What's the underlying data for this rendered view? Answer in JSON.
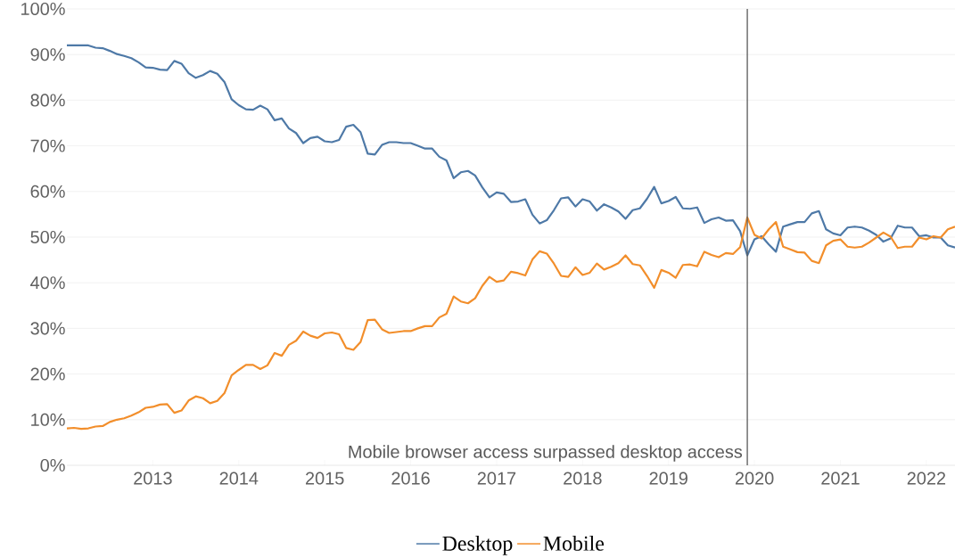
{
  "chart_data": {
    "type": "line",
    "x": [
      "2012-01",
      "2012-02",
      "2012-03",
      "2012-04",
      "2012-05",
      "2012-06",
      "2012-07",
      "2012-08",
      "2012-09",
      "2012-10",
      "2012-11",
      "2012-12",
      "2013-01",
      "2013-02",
      "2013-03",
      "2013-04",
      "2013-05",
      "2013-06",
      "2013-07",
      "2013-08",
      "2013-09",
      "2013-10",
      "2013-11",
      "2013-12",
      "2014-01",
      "2014-02",
      "2014-03",
      "2014-04",
      "2014-05",
      "2014-06",
      "2014-07",
      "2014-08",
      "2014-09",
      "2014-10",
      "2014-11",
      "2014-12",
      "2015-01",
      "2015-02",
      "2015-03",
      "2015-04",
      "2015-05",
      "2015-06",
      "2015-07",
      "2015-08",
      "2015-09",
      "2015-10",
      "2015-11",
      "2015-12",
      "2016-01",
      "2016-02",
      "2016-03",
      "2016-04",
      "2016-05",
      "2016-06",
      "2016-07",
      "2016-08",
      "2016-09",
      "2016-10",
      "2016-11",
      "2016-12",
      "2017-01",
      "2017-02",
      "2017-03",
      "2017-04",
      "2017-05",
      "2017-06",
      "2017-07",
      "2017-08",
      "2017-09",
      "2017-10",
      "2017-11",
      "2017-12",
      "2018-01",
      "2018-02",
      "2018-03",
      "2018-04",
      "2018-05",
      "2018-06",
      "2018-07",
      "2018-08",
      "2018-09",
      "2018-10",
      "2018-11",
      "2018-12",
      "2019-01",
      "2019-02",
      "2019-03",
      "2019-04",
      "2019-05",
      "2019-06",
      "2019-07",
      "2019-08",
      "2019-09",
      "2019-10",
      "2019-11",
      "2019-12",
      "2020-01",
      "2020-02",
      "2020-03",
      "2020-04",
      "2020-05",
      "2020-06",
      "2020-07",
      "2020-08",
      "2020-09",
      "2020-10",
      "2020-11",
      "2020-12",
      "2021-01",
      "2021-02",
      "2021-03",
      "2021-04",
      "2021-05",
      "2021-06",
      "2021-07",
      "2021-08",
      "2021-09",
      "2021-10",
      "2021-11",
      "2021-12",
      "2022-01",
      "2022-02",
      "2022-03",
      "2022-04",
      "2022-05"
    ],
    "series": [
      {
        "name": "Desktop",
        "color": "#4e79a7",
        "values": [
          92.0,
          92.0,
          92.0,
          92.0,
          91.5,
          91.4,
          90.8,
          90.1,
          89.7,
          89.2,
          88.3,
          87.2,
          87.1,
          86.7,
          86.6,
          88.6,
          88.0,
          85.9,
          84.9,
          85.5,
          86.4,
          85.8,
          84.0,
          80.2,
          78.9,
          78.0,
          77.9,
          78.8,
          78.0,
          75.6,
          76.0,
          73.8,
          72.8,
          70.6,
          71.7,
          72.0,
          71.0,
          70.8,
          71.3,
          74.2,
          74.6,
          73.0,
          68.3,
          68.1,
          70.2,
          70.8,
          70.8,
          70.6,
          70.6,
          70.0,
          69.4,
          69.4,
          67.6,
          66.8,
          62.9,
          64.2,
          64.5,
          63.5,
          60.9,
          58.7,
          59.8,
          59.5,
          57.7,
          57.8,
          58.3,
          54.9,
          53.0,
          53.7,
          55.9,
          58.5,
          58.7,
          56.7,
          58.3,
          57.8,
          55.8,
          57.2,
          56.5,
          55.6,
          54.0,
          55.9,
          56.3,
          58.4,
          61.0,
          57.4,
          57.9,
          58.8,
          56.3,
          56.2,
          56.5,
          53.1,
          53.9,
          54.3,
          53.6,
          53.7,
          51.3,
          46.0,
          49.5,
          50.2,
          48.4,
          46.8,
          52.3,
          52.8,
          53.3,
          53.3,
          55.2,
          55.7,
          51.7,
          50.8,
          50.4,
          52.1,
          52.3,
          52.1,
          51.4,
          50.5,
          49.0,
          49.7,
          52.5,
          52.1,
          52.1,
          50.2,
          50.4,
          49.9,
          49.9,
          48.2,
          47.7
        ]
      },
      {
        "name": "Mobile",
        "color": "#f28e2b",
        "values": [
          8.1,
          8.2,
          8.0,
          8.1,
          8.5,
          8.6,
          9.5,
          10.0,
          10.3,
          10.9,
          11.6,
          12.6,
          12.8,
          13.3,
          13.4,
          11.5,
          12.0,
          14.2,
          15.1,
          14.7,
          13.6,
          14.1,
          15.8,
          19.7,
          20.9,
          22.0,
          22.0,
          21.1,
          21.9,
          24.6,
          24.0,
          26.4,
          27.3,
          29.3,
          28.4,
          27.9,
          28.9,
          29.1,
          28.7,
          25.7,
          25.3,
          27.0,
          31.8,
          31.9,
          29.8,
          29.0,
          29.2,
          29.4,
          29.4,
          30.0,
          30.5,
          30.5,
          32.4,
          33.2,
          37.0,
          35.9,
          35.5,
          36.6,
          39.3,
          41.3,
          40.2,
          40.5,
          42.4,
          42.1,
          41.6,
          45.1,
          46.9,
          46.4,
          44.2,
          41.5,
          41.3,
          43.4,
          41.7,
          42.2,
          44.2,
          42.9,
          43.5,
          44.3,
          46.0,
          44.1,
          43.8,
          41.5,
          38.9,
          42.8,
          42.2,
          41.1,
          43.9,
          44.0,
          43.6,
          46.8,
          46.1,
          45.6,
          46.5,
          46.3,
          47.8,
          54.3,
          50.5,
          49.7,
          51.7,
          53.3,
          47.9,
          47.3,
          46.7,
          46.6,
          44.8,
          44.3,
          48.2,
          49.2,
          49.5,
          47.9,
          47.7,
          47.9,
          48.8,
          49.9,
          51.0,
          50.1,
          47.6,
          47.9,
          47.9,
          49.9,
          49.5,
          50.2,
          49.9,
          51.7,
          52.3
        ]
      }
    ],
    "xlim": [
      "2012-01",
      "2022-05"
    ],
    "xticks": [
      {
        "value": "2013-01",
        "label": "2013"
      },
      {
        "value": "2014-01",
        "label": "2014"
      },
      {
        "value": "2015-01",
        "label": "2015"
      },
      {
        "value": "2016-01",
        "label": "2016"
      },
      {
        "value": "2017-01",
        "label": "2017"
      },
      {
        "value": "2018-01",
        "label": "2018"
      },
      {
        "value": "2019-01",
        "label": "2019"
      },
      {
        "value": "2020-01",
        "label": "2020"
      },
      {
        "value": "2021-01",
        "label": "2021"
      },
      {
        "value": "2022-01",
        "label": "2022"
      }
    ],
    "ylim": [
      0,
      100
    ],
    "yticks": [
      {
        "value": 0,
        "label": "0%"
      },
      {
        "value": 10,
        "label": "10%"
      },
      {
        "value": 20,
        "label": "20%"
      },
      {
        "value": 30,
        "label": "30%"
      },
      {
        "value": 40,
        "label": "40%"
      },
      {
        "value": 50,
        "label": "50%"
      },
      {
        "value": 60,
        "label": "60%"
      },
      {
        "value": 70,
        "label": "70%"
      },
      {
        "value": 80,
        "label": "80%"
      },
      {
        "value": 90,
        "label": "90%"
      },
      {
        "value": 100,
        "label": "100%"
      }
    ],
    "ref_lines": [
      {
        "axis": "x",
        "value": "2019-12",
        "label": "Mobile browser access surpassed desktop access",
        "color": "#595959"
      }
    ],
    "grid": "y",
    "legend": "bottom"
  }
}
